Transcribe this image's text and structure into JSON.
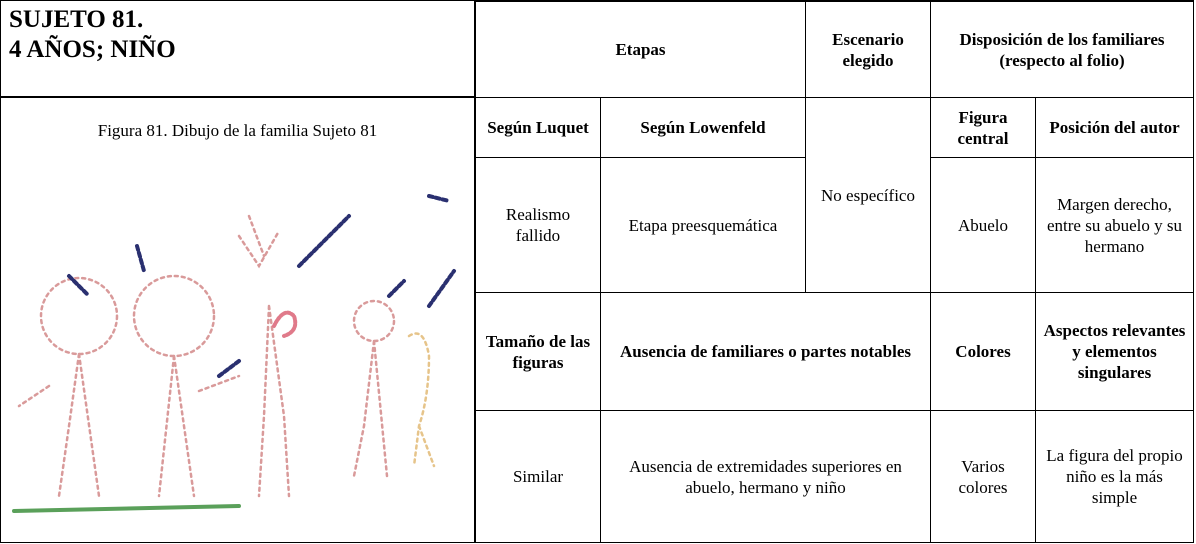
{
  "header": {
    "title_lines": [
      "SUJETO 81.",
      "4 AÑOS; NIÑO"
    ]
  },
  "figure": {
    "caption": "Figura 81. Dibujo de la familia Sujeto 81"
  },
  "table": {
    "headers": {
      "etapas": "Etapas",
      "escenario": "Escenario elegido",
      "disposicion": "Disposición de los familiares (respecto al folio)"
    },
    "subheaders": {
      "luquet": "Según Luquet",
      "lowenfeld": "Según Lowenfeld",
      "figura_central": "Figura central",
      "posicion": "Posición del autor"
    },
    "row1": {
      "luquet": "Realismo fallido",
      "lowenfeld": "Etapa preesquemática",
      "escenario": "No específico",
      "figura_central": "Abuelo",
      "posicion": "Margen derecho, entre su abuelo y su hermano"
    },
    "headers2": {
      "tamano": "Tamaño de las figuras",
      "ausencia": "Ausencia de familiares o partes notables",
      "colores": "Colores",
      "aspectos": "Aspectos relevantes y elementos singulares"
    },
    "row2": {
      "tamano": "Similar",
      "ausencia": "Ausencia de extremidades superiores en abuelo, hermano y niño",
      "colores": "Varios colores",
      "aspectos": "La figura del propio niño es la más simple"
    }
  }
}
